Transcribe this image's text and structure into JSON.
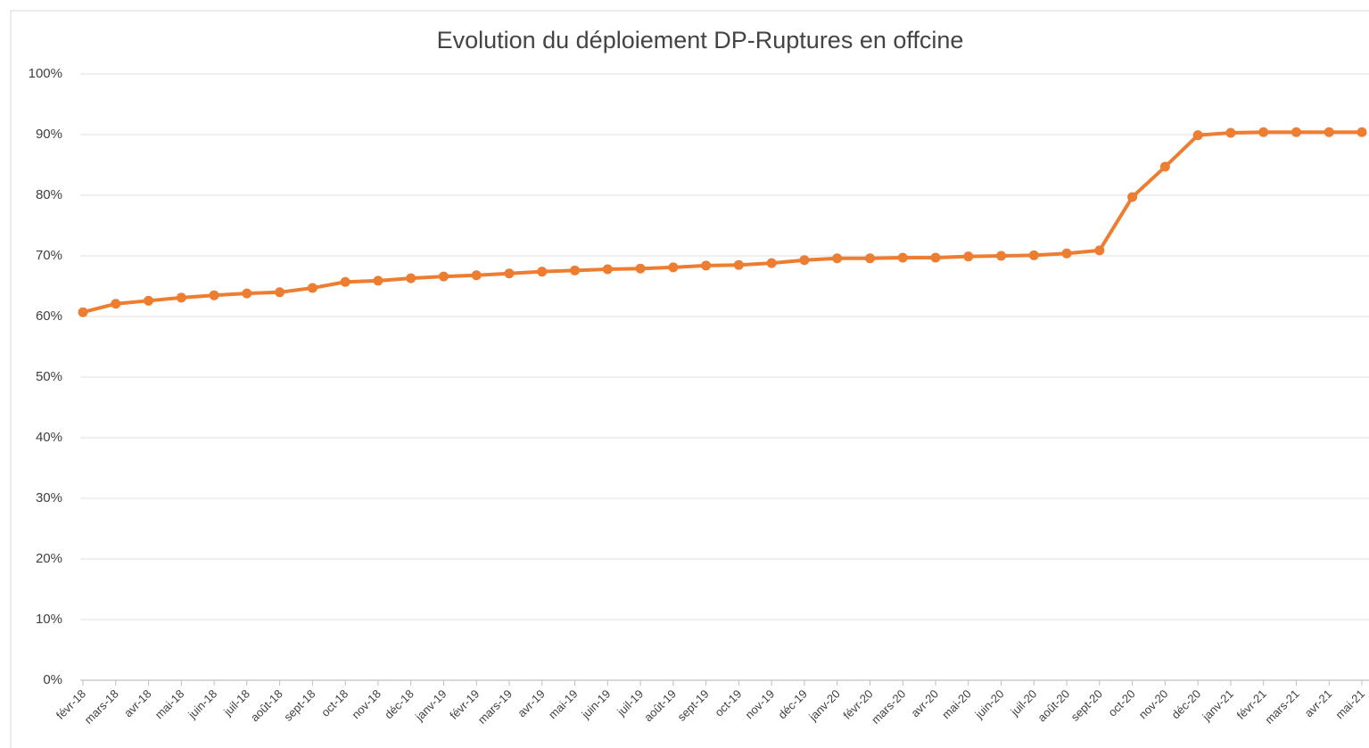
{
  "chart_data": {
    "type": "line",
    "title": "Evolution du déploiement DP-Ruptures en offcine",
    "categories": [
      "févr-18",
      "mars-18",
      "avr-18",
      "mai-18",
      "juin-18",
      "juil-18",
      "août-18",
      "sept-18",
      "oct-18",
      "nov-18",
      "déc-18",
      "janv-19",
      "févr-19",
      "mars-19",
      "avr-19",
      "mai-19",
      "juin-19",
      "juil-19",
      "août-19",
      "sept-19",
      "oct-19",
      "nov-19",
      "déc-19",
      "janv-20",
      "févr-20",
      "mars-20",
      "avr-20",
      "mai-20",
      "juin-20",
      "juil-20",
      "août-20",
      "sept-20",
      "oct-20",
      "nov-20",
      "déc-20",
      "janv-21",
      "févr-21",
      "mars-21",
      "avr-21",
      "mai-21"
    ],
    "series": [
      {
        "color": "#ed7d31",
        "values": [
          60.7,
          62.1,
          62.6,
          63.1,
          63.5,
          63.8,
          64.0,
          64.7,
          65.7,
          65.9,
          66.3,
          66.6,
          66.8,
          67.1,
          67.4,
          67.6,
          67.8,
          67.9,
          68.1,
          68.4,
          68.5,
          68.8,
          69.3,
          69.6,
          69.6,
          69.7,
          69.7,
          69.9,
          70.0,
          70.1,
          70.4,
          70.9,
          79.7,
          84.7,
          89.9,
          90.3,
          90.4,
          90.4,
          90.4,
          90.4
        ]
      }
    ],
    "ylim": [
      0,
      100
    ],
    "yticks": [
      {
        "value": 0,
        "label": "0%"
      },
      {
        "value": 10,
        "label": "10%"
      },
      {
        "value": 20,
        "label": "20%"
      },
      {
        "value": 30,
        "label": "30%"
      },
      {
        "value": 40,
        "label": "40%"
      },
      {
        "value": 50,
        "label": "50%"
      },
      {
        "value": 60,
        "label": "60%"
      },
      {
        "value": 70,
        "label": "70%"
      },
      {
        "value": 80,
        "label": "80%"
      },
      {
        "value": 90,
        "label": "90%"
      },
      {
        "value": 100,
        "label": "100%"
      }
    ],
    "grid": true
  }
}
